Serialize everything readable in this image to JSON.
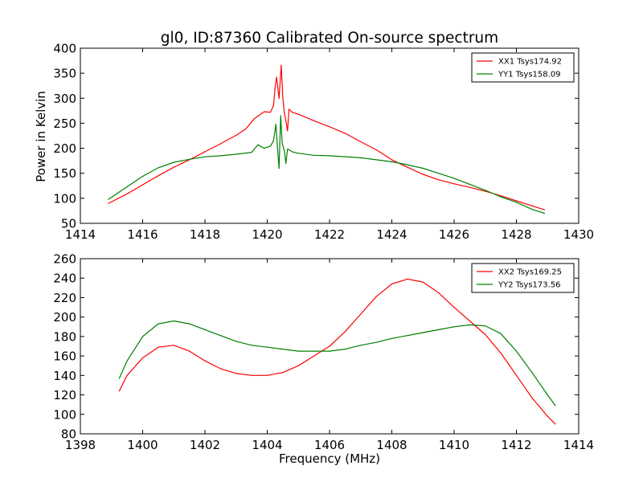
{
  "figure": {
    "title": "gl0, ID:87360 Calibrated On-source spectrum",
    "xlabel": "Frequency (MHz)",
    "ylabel": "Power in Kelvin"
  },
  "chart_data": [
    {
      "type": "line",
      "title": "gl0, ID:87360 Calibrated On-source spectrum",
      "xlabel": "",
      "ylabel": "Power in Kelvin",
      "xlim": [
        1414,
        1430
      ],
      "ylim": [
        50,
        400
      ],
      "xticks": [
        "1414",
        "1416",
        "1418",
        "1420",
        "1422",
        "1424",
        "1426",
        "1428",
        "1430"
      ],
      "yticks": [
        "50",
        "100",
        "150",
        "200",
        "250",
        "300",
        "350",
        "400"
      ],
      "legend": "top-right",
      "grid": false,
      "series": [
        {
          "name": "XX1 Tsys174.92",
          "color": "#ff0000",
          "x": [
            1414.9,
            1415.5,
            1416,
            1416.5,
            1417,
            1417.5,
            1418,
            1418.5,
            1419,
            1419.3,
            1419.6,
            1419.9,
            1420.1,
            1420.2,
            1420.25,
            1420.3,
            1420.38,
            1420.45,
            1420.5,
            1420.55,
            1420.6,
            1420.65,
            1420.7,
            1420.8,
            1421,
            1421.5,
            1422,
            1422.5,
            1423,
            1423.5,
            1424,
            1424.5,
            1425,
            1425.5,
            1426,
            1426.5,
            1427,
            1427.5,
            1428,
            1428.5,
            1428.9
          ],
          "values": [
            90,
            109,
            127,
            145,
            162,
            177,
            193,
            209,
            226,
            238,
            260,
            273,
            272,
            285,
            320,
            342,
            300,
            366,
            300,
            270,
            255,
            235,
            278,
            272,
            268,
            255,
            243,
            230,
            213,
            197,
            177,
            162,
            148,
            137,
            129,
            122,
            114,
            105,
            95,
            85,
            77
          ]
        },
        {
          "name": "YY1 Tsys158.09",
          "color": "#008000",
          "x": [
            1414.9,
            1415.5,
            1416,
            1416.5,
            1417,
            1417.5,
            1418,
            1418.5,
            1419,
            1419.5,
            1419.7,
            1419.9,
            1420.1,
            1420.2,
            1420.28,
            1420.33,
            1420.38,
            1420.43,
            1420.48,
            1420.55,
            1420.6,
            1420.65,
            1420.7,
            1420.8,
            1421,
            1421.5,
            1422,
            1423,
            1424,
            1424.5,
            1425,
            1425.5,
            1426,
            1426.5,
            1427,
            1427.5,
            1428,
            1428.5,
            1428.9
          ],
          "values": [
            98,
            123,
            144,
            161,
            172,
            178,
            183,
            185,
            188,
            192,
            207,
            200,
            204,
            215,
            248,
            200,
            160,
            265,
            210,
            195,
            170,
            198,
            197,
            193,
            190,
            186,
            185,
            181,
            173,
            167,
            160,
            150,
            140,
            128,
            116,
            103,
            92,
            78,
            70
          ]
        }
      ]
    },
    {
      "type": "line",
      "title": "",
      "xlabel": "Frequency (MHz)",
      "ylabel": "",
      "xlim": [
        1398,
        1414
      ],
      "ylim": [
        80,
        260
      ],
      "xticks": [
        "1398",
        "1400",
        "1402",
        "1404",
        "1406",
        "1408",
        "1410",
        "1412",
        "1414"
      ],
      "yticks": [
        "80",
        "100",
        "120",
        "140",
        "160",
        "180",
        "200",
        "220",
        "240",
        "260"
      ],
      "legend": "top-right",
      "grid": false,
      "series": [
        {
          "name": "XX2 Tsys169.25",
          "color": "#ff0000",
          "x": [
            1399.25,
            1399.5,
            1400,
            1400.5,
            1401,
            1401.5,
            1402,
            1402.5,
            1403,
            1403.5,
            1404,
            1404.5,
            1405,
            1405.5,
            1406,
            1406.5,
            1407,
            1407.5,
            1408,
            1408.5,
            1409,
            1409.5,
            1410,
            1410.5,
            1411,
            1411.5,
            1412,
            1412.5,
            1413,
            1413.25
          ],
          "values": [
            124,
            140,
            158,
            169,
            171,
            165,
            155,
            147,
            142,
            140,
            140,
            143,
            150,
            160,
            170,
            185,
            203,
            221,
            234,
            239,
            236,
            225,
            210,
            196,
            182,
            163,
            140,
            117,
            98,
            90
          ]
        },
        {
          "name": "YY2 Tsys173.56",
          "color": "#008000",
          "x": [
            1399.25,
            1399.5,
            1400,
            1400.5,
            1401,
            1401.5,
            1402,
            1402.5,
            1403,
            1403.5,
            1404,
            1404.5,
            1405,
            1405.5,
            1406,
            1406.5,
            1407,
            1407.5,
            1408,
            1408.5,
            1409,
            1409.5,
            1410,
            1410.5,
            1411,
            1411.5,
            1412,
            1412.5,
            1413,
            1413.25
          ],
          "values": [
            137,
            155,
            180,
            193,
            196,
            193,
            187,
            181,
            175,
            171,
            169,
            167,
            165,
            165,
            165,
            167,
            171,
            174,
            178,
            181,
            184,
            187,
            190,
            192,
            191,
            183,
            165,
            143,
            120,
            109
          ]
        }
      ]
    }
  ]
}
